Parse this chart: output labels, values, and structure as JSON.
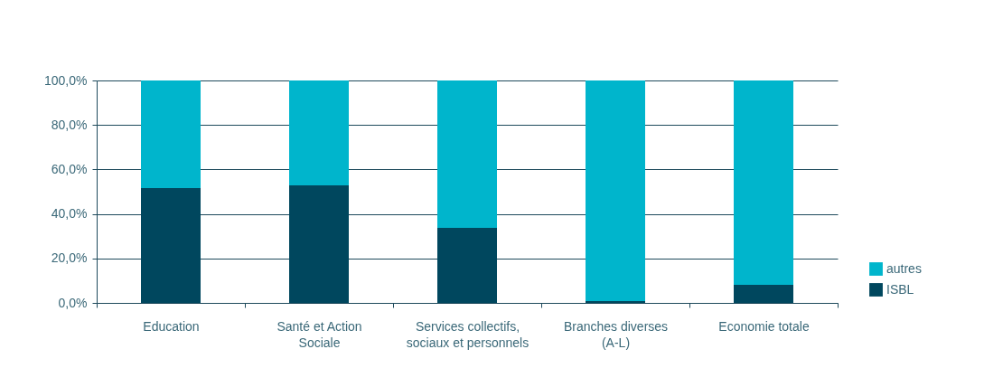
{
  "chart_data": {
    "type": "bar",
    "stacked": true,
    "categories": [
      "Education",
      "Santé et Action Sociale",
      "Services collectifs, sociaux et personnels",
      "Branches diverses (A-L)",
      "Economie totale"
    ],
    "series": [
      {
        "name": "ISBL",
        "color": "#00475e",
        "values": [
          51.6,
          52.8,
          33.7,
          0.8,
          8.1
        ]
      },
      {
        "name": "autres",
        "color": "#00b5cc",
        "values": [
          48.4,
          47.2,
          66.3,
          99.2,
          91.9
        ]
      }
    ],
    "ylim": [
      0,
      100
    ],
    "yticks": [
      {
        "value": 0,
        "label": "0,0%"
      },
      {
        "value": 20,
        "label": "20,0%"
      },
      {
        "value": 40,
        "label": "40,0%"
      },
      {
        "value": 60,
        "label": "60,0%"
      },
      {
        "value": 80,
        "label": "80,0%"
      },
      {
        "value": 100,
        "label": "100,0%"
      }
    ],
    "grid": "y",
    "legend": "bottom right"
  }
}
